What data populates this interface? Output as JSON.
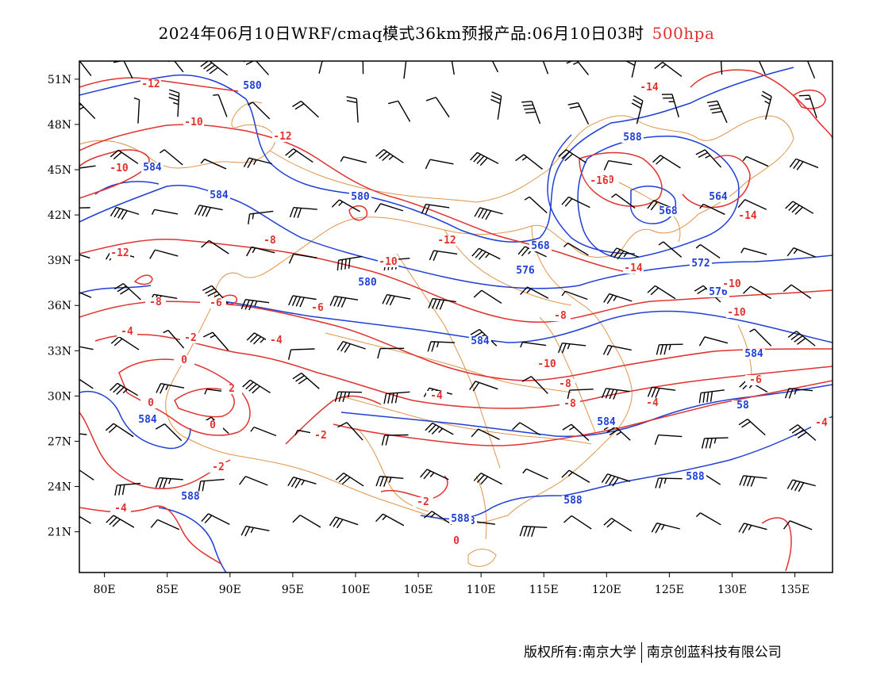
{
  "header": {
    "title": "2024年06月10日WRF/cmaq模式36km预报产品:06月10日03时",
    "level": "500hpa"
  },
  "axes": {
    "lon_labels": [
      "80E",
      "85E",
      "90E",
      "95E",
      "100E",
      "105E",
      "110E",
      "115E",
      "120E",
      "125E",
      "130E",
      "135E"
    ],
    "lat_labels": [
      "51N",
      "48N",
      "45N",
      "42N",
      "39N",
      "36N",
      "33N",
      "30N",
      "27N",
      "24N",
      "21N"
    ]
  },
  "map": {
    "lon_range": [
      78,
      138
    ],
    "lat_range": [
      18.3,
      52.2
    ],
    "height_contour_color": "#1f3fd6",
    "temperature_contour_color": "#e0322f",
    "border_color": "#e0954a",
    "wind_barb_color": "#000000",
    "height_labels": [
      "580",
      "584",
      "584",
      "580",
      "588",
      "568",
      "564",
      "568",
      "576",
      "580",
      "584",
      "572",
      "576",
      "584",
      "58",
      "584",
      "584",
      "588",
      "588",
      "588",
      "588",
      "588"
    ],
    "temperature_labels": [
      "-12",
      "-10",
      "-10",
      "-12",
      "-10",
      "-14",
      "-16",
      "-14",
      "-14",
      "-10",
      "-8",
      "-12",
      "-10",
      "-6",
      "-6",
      "-6",
      "-8",
      "-4",
      "-4",
      "-2",
      "0",
      "2",
      "0",
      "0",
      "-2",
      "-2",
      "-8",
      "-10",
      "-12",
      "-12",
      "-10",
      "-8",
      "-8",
      "-4",
      "-4",
      "-4",
      "-2",
      "-4",
      "0",
      "-6"
    ]
  },
  "footer": {
    "copyright": "版权所有:南京大学",
    "company": "南京创蓝科技有限公司"
  }
}
